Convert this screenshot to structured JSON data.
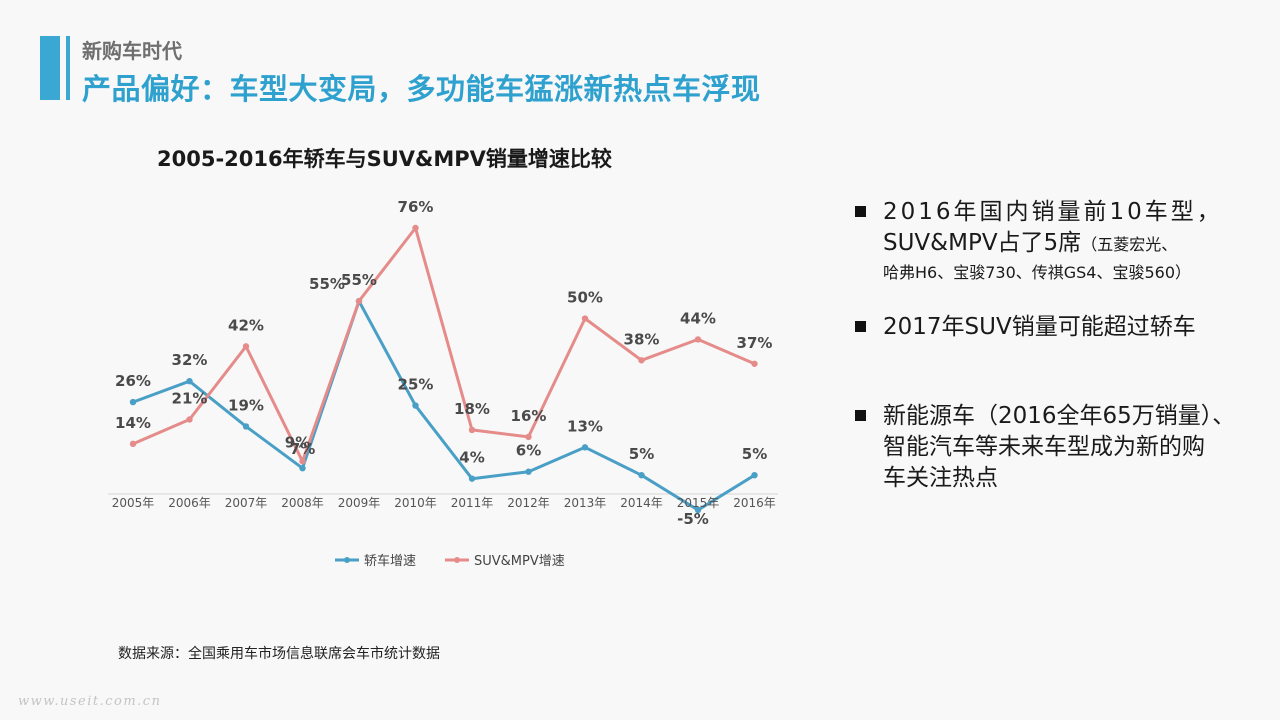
{
  "header": {
    "section": "新购车时代",
    "headline": "产品偏好：车型大变局，多功能车猛涨新热点车浮现"
  },
  "chart_data": {
    "type": "line",
    "title": "2005-2016年轿车与SUV&MPV销量增速比较",
    "categories": [
      "2005年",
      "2006年",
      "2007年",
      "2008年",
      "2009年",
      "2010年",
      "2011年",
      "2012年",
      "2013年",
      "2014年",
      "2015年",
      "2016年"
    ],
    "series": [
      {
        "name": "轿车增速",
        "values": [
          26,
          32,
          19,
          7,
          55,
          25,
          4,
          6,
          13,
          5,
          -5,
          5
        ],
        "labels": [
          "26%",
          "32%",
          "19%",
          "7%",
          "55%",
          "25%",
          "4%",
          "6%",
          "13%",
          "5%",
          "-5%",
          "5%"
        ],
        "color": "#4a9fc6"
      },
      {
        "name": "SUV&MPV增速",
        "values": [
          14,
          21,
          42,
          9,
          55,
          76,
          18,
          16,
          50,
          38,
          44,
          37
        ],
        "labels": [
          "14%",
          "21%",
          "42%",
          "9%",
          "55%",
          "76%",
          "18%",
          "16%",
          "50%",
          "38%",
          "44%",
          "37%"
        ],
        "color": "#e58c8a"
      }
    ],
    "ylim": [
      -5,
      76
    ],
    "grid": false,
    "legend": "bottom"
  },
  "bullets": {
    "b1_line1": "2016年国内销量前10车型，",
    "b1_line2_main": "SUV&MPV占了5席",
    "b1_line2_paren": "（五菱宏光、",
    "b1_line3": "哈弗H6、宝骏730、传祺GS4、宝骏560）",
    "b2": "2017年SUV销量可能超过轿车",
    "b3_line1": "新能源车（2016全年65万销量）、",
    "b3_line2": "智能汽车等未来车型成为新的购",
    "b3_line3": "车关注热点"
  },
  "footer": {
    "source": "数据来源：全国乘用车市场信息联席会车市统计数据",
    "watermark": "www.useit.com.cn"
  }
}
